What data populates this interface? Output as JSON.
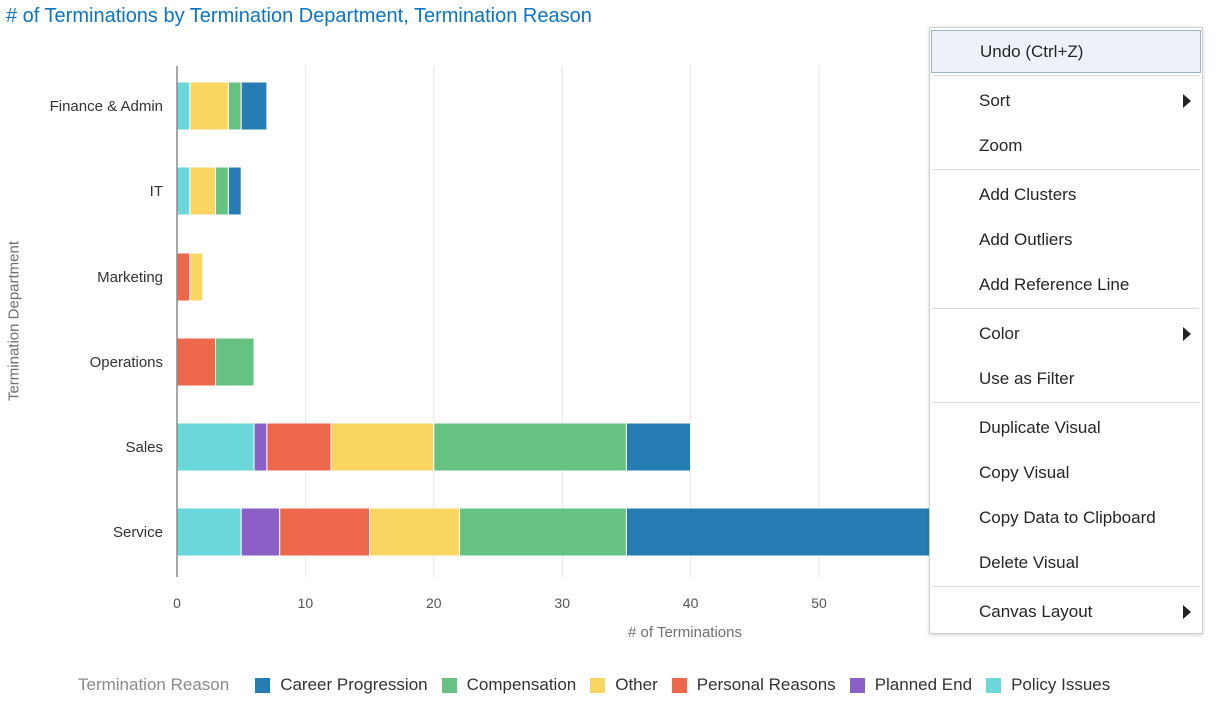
{
  "title": "# of Terminations by Termination Department, Termination Reason",
  "chart_data": {
    "type": "bar",
    "orientation": "horizontal",
    "stacked": true,
    "title": "# of Terminations by Termination Department, Termination Reason",
    "xlabel": "# of Terminations",
    "ylabel": "Termination Department",
    "xlim": [
      0,
      60
    ],
    "xticks": [
      0,
      10,
      20,
      30,
      40,
      50
    ],
    "grid": true,
    "legend_position": "bottom",
    "legend_title": "Termination Reason",
    "categories": [
      "Finance & Admin",
      "IT",
      "Marketing",
      "Operations",
      "Sales",
      "Service"
    ],
    "series": [
      {
        "name": "Policy Issues",
        "color": "#6ad8db",
        "values": [
          1,
          1,
          0,
          0,
          6,
          5
        ]
      },
      {
        "name": "Planned End",
        "color": "#8a5fc6",
        "values": [
          0,
          0,
          0,
          0,
          1,
          3
        ]
      },
      {
        "name": "Personal Reasons",
        "color": "#ed674b",
        "values": [
          0,
          0,
          1,
          3,
          5,
          7
        ]
      },
      {
        "name": "Other",
        "color": "#f9d562",
        "values": [
          3,
          2,
          1,
          0,
          8,
          7
        ]
      },
      {
        "name": "Compensation",
        "color": "#66c283",
        "values": [
          1,
          1,
          0,
          3,
          15,
          13
        ]
      },
      {
        "name": "Career Progression",
        "color": "#267db3",
        "values": [
          2,
          1,
          0,
          0,
          5,
          24
        ]
      }
    ],
    "legend_order": [
      "Career Progression",
      "Compensation",
      "Other",
      "Personal Reasons",
      "Planned End",
      "Policy Issues"
    ]
  },
  "context_menu": {
    "items": [
      {
        "label": "Undo (Ctrl+Z)",
        "active": true,
        "submenu": false
      },
      {
        "label": "Sort",
        "submenu": true
      },
      {
        "label": "Zoom",
        "submenu": false
      },
      {
        "label": "Add Clusters",
        "submenu": false
      },
      {
        "label": "Add Outliers",
        "submenu": false
      },
      {
        "label": "Add Reference Line",
        "submenu": false
      },
      {
        "label": "Color",
        "submenu": true
      },
      {
        "label": "Use as Filter",
        "submenu": false
      },
      {
        "label": "Duplicate Visual",
        "submenu": false
      },
      {
        "label": "Copy Visual",
        "submenu": false
      },
      {
        "label": "Copy Data to Clipboard",
        "submenu": false
      },
      {
        "label": "Delete Visual",
        "submenu": false
      },
      {
        "label": "Canvas Layout",
        "submenu": true
      }
    ]
  }
}
